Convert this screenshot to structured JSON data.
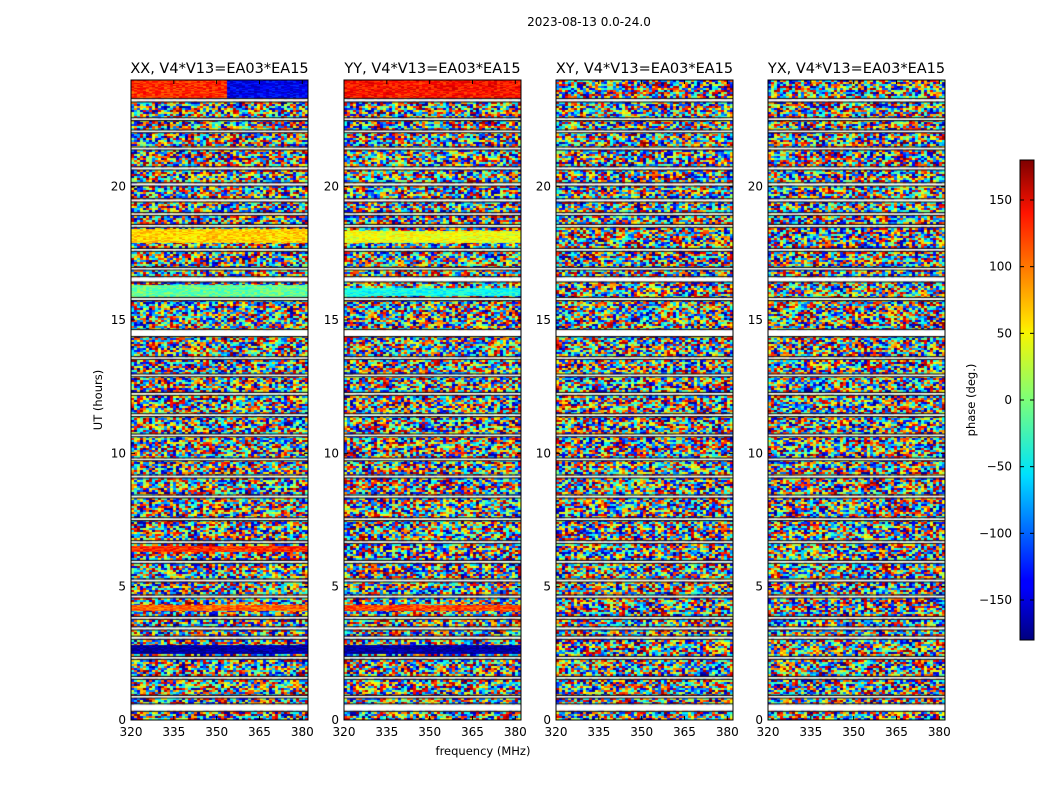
{
  "figure": {
    "suptitle": "2023-08-13 0.0-24.0",
    "xlabel": "frequency (MHz)",
    "ylabel": "UT (hours)",
    "colorbar_label": "phase (deg.)"
  },
  "chart_data": {
    "type": "heatmap",
    "quantity": "visibility phase",
    "x_range_mhz": [
      320,
      382
    ],
    "y_range_hours": [
      0,
      24
    ],
    "x_ticks": [
      320,
      335,
      350,
      365,
      380
    ],
    "y_ticks": [
      0,
      5,
      10,
      15,
      20
    ],
    "color_range_deg": [
      -180,
      180
    ],
    "colorbar_ticks": [
      150,
      100,
      50,
      0,
      -50,
      -100,
      -150
    ],
    "colormap": "jet",
    "panels": [
      {
        "title": "XX, V4*V13=EA03*EA15",
        "coherent_bands": [
          {
            "t0": 23.3,
            "t1": 24.0,
            "phase": 120,
            "phase_hi_freq": -140,
            "split_mhz": 353
          },
          {
            "t0": 17.9,
            "t1": 18.4,
            "phase": 60
          },
          {
            "t0": 15.8,
            "t1": 16.3,
            "phase": -10
          },
          {
            "t0": 6.3,
            "t1": 6.5,
            "phase": 120
          },
          {
            "t0": 4.1,
            "t1": 4.3,
            "phase": 100
          },
          {
            "t0": 2.5,
            "t1": 2.8,
            "phase": -170
          }
        ]
      },
      {
        "title": "YY, V4*V13=EA03*EA15",
        "coherent_bands": [
          {
            "t0": 23.3,
            "t1": 24.0,
            "phase": 130
          },
          {
            "t0": 17.9,
            "t1": 18.3,
            "phase": 40
          },
          {
            "t0": 15.9,
            "t1": 16.2,
            "phase": -40
          },
          {
            "t0": 4.1,
            "t1": 4.3,
            "phase": 110
          },
          {
            "t0": 2.5,
            "t1": 2.8,
            "phase": -170
          }
        ]
      },
      {
        "title": "XY, V4*V13=EA03*EA15",
        "coherent_bands": []
      },
      {
        "title": "YX, V4*V13=EA03*EA15",
        "coherent_bands": []
      }
    ],
    "data_gaps_hours": [
      [
        23.2,
        23.28
      ],
      [
        22.5,
        22.56
      ],
      [
        22.05,
        22.1
      ],
      [
        21.4,
        21.46
      ],
      [
        20.65,
        20.72
      ],
      [
        20.05,
        20.12
      ],
      [
        19.45,
        19.52
      ],
      [
        18.95,
        19.0
      ],
      [
        18.5,
        18.56
      ],
      [
        17.6,
        17.66
      ],
      [
        16.9,
        16.95
      ],
      [
        16.45,
        16.6
      ],
      [
        15.75,
        15.82
      ],
      [
        14.4,
        14.62
      ],
      [
        13.55,
        13.6
      ],
      [
        12.9,
        12.95
      ],
      [
        12.2,
        12.26
      ],
      [
        11.4,
        11.46
      ],
      [
        10.65,
        10.7
      ],
      [
        9.75,
        9.8
      ],
      [
        9.1,
        9.16
      ],
      [
        8.35,
        8.41
      ],
      [
        7.5,
        7.56
      ],
      [
        6.65,
        6.7
      ],
      [
        5.9,
        5.96
      ],
      [
        5.2,
        5.26
      ],
      [
        4.6,
        4.66
      ],
      [
        3.8,
        3.86
      ],
      [
        3.4,
        3.47
      ],
      [
        3.05,
        3.12
      ],
      [
        2.3,
        2.36
      ],
      [
        1.55,
        1.61
      ],
      [
        0.85,
        0.9
      ],
      [
        0.35,
        0.58
      ]
    ]
  }
}
